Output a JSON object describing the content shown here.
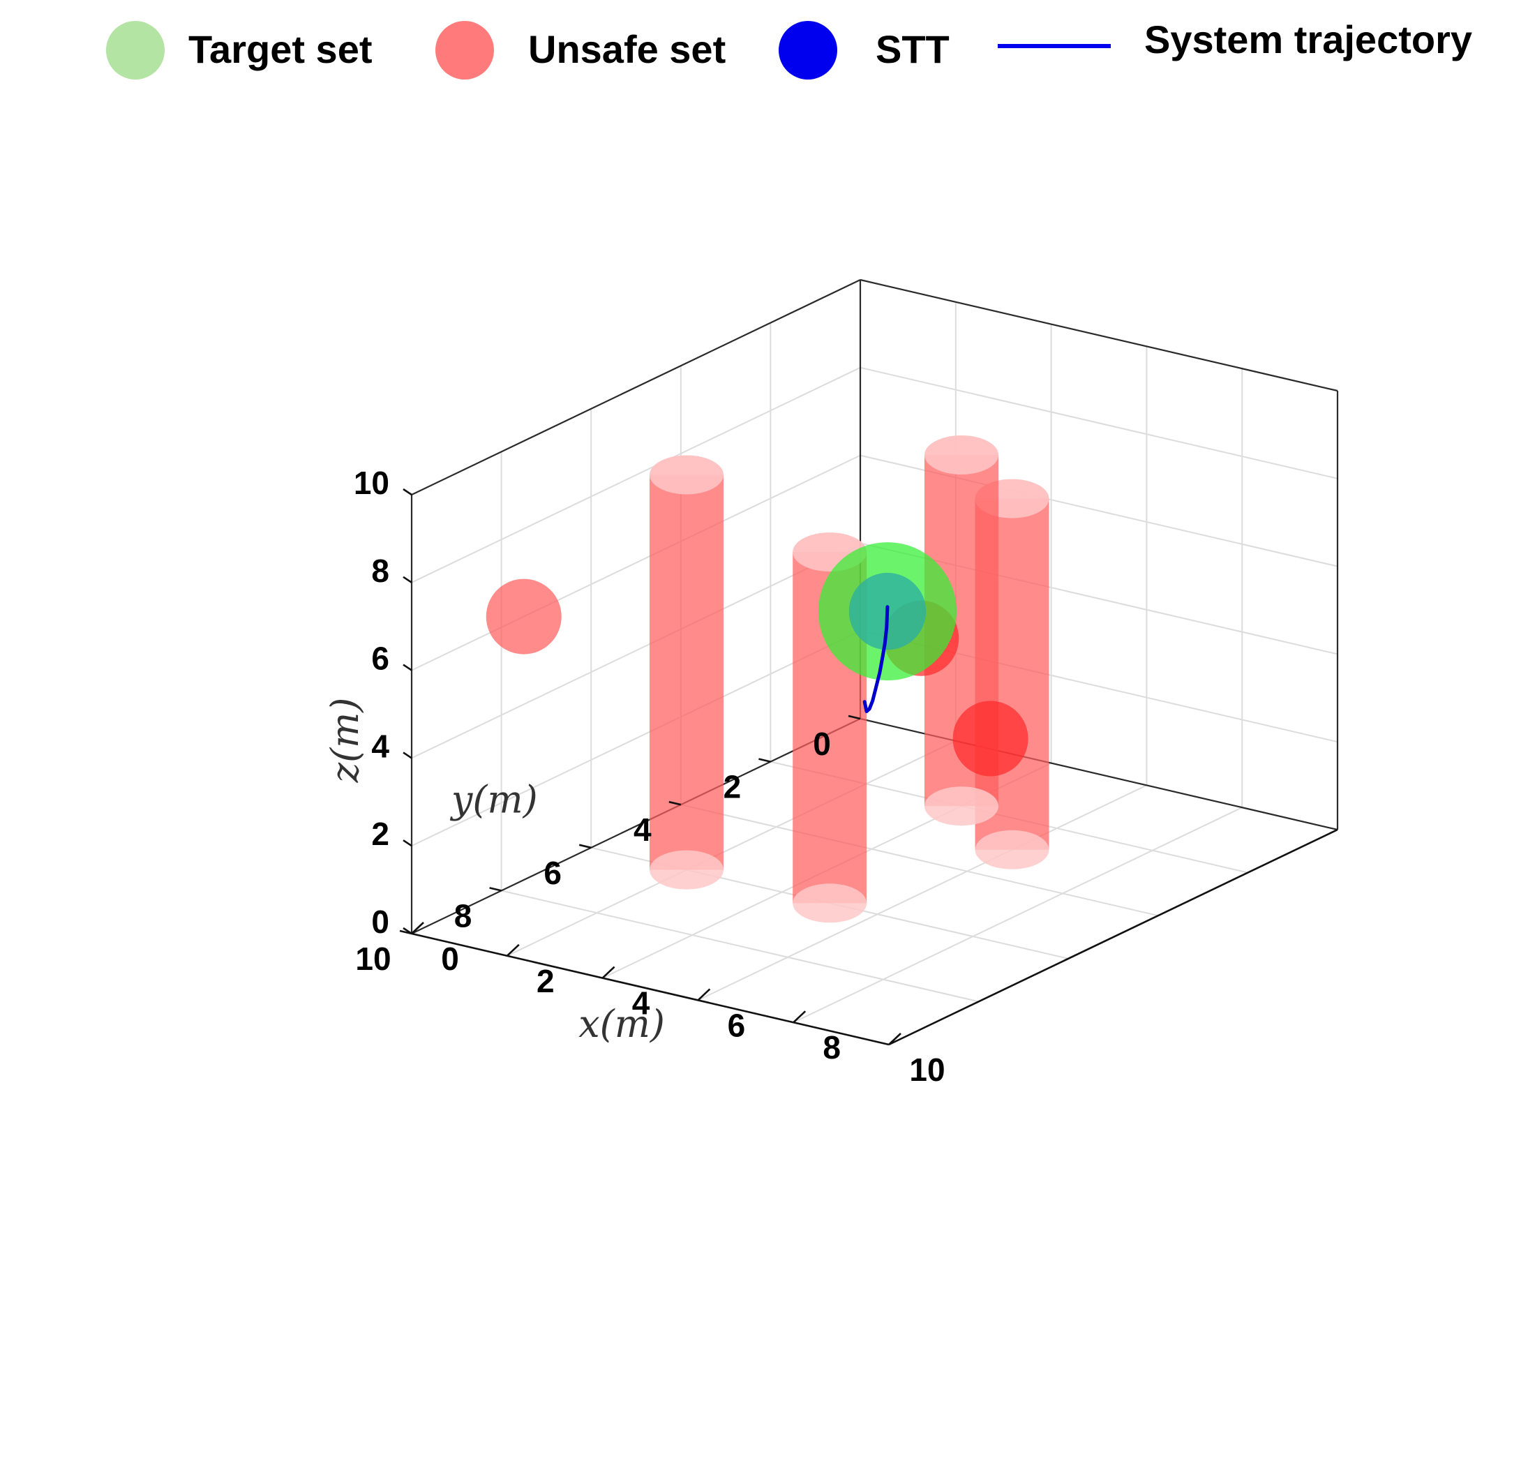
{
  "chart_data": {
    "type": "scatter",
    "dimensions": "3d",
    "legend": {
      "placement": "top",
      "entries": [
        {
          "label": "Target set",
          "marker": "circle",
          "color": "#b4e4a4"
        },
        {
          "label": "Unsafe set",
          "marker": "circle",
          "color": "#ff7b7b"
        },
        {
          "label": "STT",
          "marker": "circle",
          "color": "#0000ee"
        },
        {
          "label": "System trajectory",
          "marker": "line",
          "color": "#0000ee"
        }
      ]
    },
    "axes": {
      "x": {
        "label": "x(m)",
        "range": [
          0,
          10
        ],
        "ticks": [
          0,
          2,
          4,
          6,
          8,
          10
        ]
      },
      "y": {
        "label": "y(m)",
        "range": [
          0,
          10
        ],
        "ticks": [
          0,
          2,
          4,
          6,
          8,
          10
        ]
      },
      "z": {
        "label": "z(m)",
        "range": [
          0,
          10
        ],
        "ticks": [
          0,
          2,
          4,
          6,
          8,
          10
        ]
      }
    },
    "grid": true,
    "target_set": {
      "center": [
        9.5,
        9.5,
        9.5
      ],
      "radius": 1.1,
      "color": "#33ee33"
    },
    "stt_tube": {
      "center": [
        9.5,
        9.5,
        9.5
      ],
      "radius": 0.4,
      "color": "#2db0a0"
    },
    "unsafe_cylinders": [
      {
        "x": 2,
        "y": 6,
        "z_min": 0,
        "z_max": 9,
        "color": "#ff5e5e"
      },
      {
        "x": 5,
        "y": 6,
        "z_min": 0,
        "z_max": 8,
        "color": "#ff5e5e"
      },
      {
        "x": 6,
        "y": 3,
        "z_min": 0,
        "z_max": 8,
        "color": "#ff5e5e"
      },
      {
        "x": 4,
        "y": 2,
        "z_min": 0,
        "z_max": 8,
        "color": "#ff5e5e"
      }
    ],
    "unsafe_spheres": [
      {
        "center": [
          0,
          7.5,
          6
        ],
        "radius": 0.6,
        "color": "#ff5e5e"
      },
      {
        "center": [
          5.6,
          4.6,
          5.5
        ],
        "radius": 0.6,
        "color": "#ff2a2a"
      },
      {
        "center": [
          6.3,
          3.8,
          3
        ],
        "radius": 0.6,
        "color": "#ff2a2a"
      }
    ],
    "system_trajectory": {
      "color": "#0000cc",
      "points": [
        [
          1.5,
          1.5,
          1.5
        ],
        [
          2.2,
          2.2,
          1.8
        ],
        [
          3.2,
          3.2,
          2.6
        ],
        [
          4.3,
          4.3,
          3.6
        ],
        [
          5.6,
          5.6,
          4.9
        ],
        [
          6.8,
          6.8,
          6.1
        ],
        [
          7.8,
          7.8,
          7.2
        ],
        [
          8.6,
          8.6,
          8.1
        ],
        [
          9.2,
          9.2,
          8.9
        ],
        [
          9.5,
          9.5,
          9.6
        ]
      ]
    }
  }
}
